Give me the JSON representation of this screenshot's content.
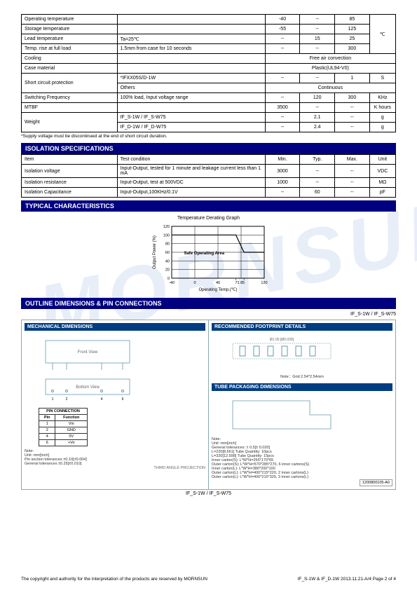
{
  "watermark": "MORNSUN",
  "table1": {
    "rows": [
      {
        "item": "Operating temperature",
        "cond": "",
        "min": "-40",
        "typ": "--",
        "max": "85",
        "unit_rowspan": true
      },
      {
        "item": "Storage temperature",
        "cond": "",
        "min": "-55",
        "typ": "--",
        "max": "125"
      },
      {
        "item": "Lead temperature",
        "cond": "Ta=25℃",
        "min": "--",
        "typ": "15",
        "max": "25"
      },
      {
        "item": "Temp. rise at full load",
        "cond": "1.5mm from case for 10 seconds",
        "min": "--",
        "typ": "--",
        "max": "300"
      }
    ],
    "tempunit": "℃",
    "cooling": {
      "item": "Cooling",
      "val": "Free air convection"
    },
    "case": {
      "item": "Case material",
      "val": "Plastic(UL94-V0)"
    },
    "short": {
      "item": "Short circuit protection",
      "r1cond": "*IFXX05S/D-1W",
      "r1min": "--",
      "r1typ": "--",
      "r1max": "1",
      "r1unit": "S",
      "r2cond": "Others",
      "r2val": "Continuous"
    },
    "swf": {
      "item": "Switching Frequency",
      "cond": "100% load, Input voltage range",
      "min": "--",
      "typ": "120",
      "max": "300",
      "unit": "KHz"
    },
    "mtbf": {
      "item": "MTBF",
      "cond": "",
      "min": "3500",
      "typ": "--",
      "max": "--",
      "unit": "K hours"
    },
    "weight": {
      "item": "Weight",
      "r1cond": "IF_S-1W / IF_S-W75",
      "r1min": "--",
      "r1typ": "2.1",
      "r1max": "--",
      "r1unit": "g",
      "r2cond": "IF_D-1W / IF_D-W75",
      "r2min": "--",
      "r2typ": "2.4",
      "r2max": "--",
      "r2unit": "g"
    }
  },
  "note1": "*Supply voltage must be discontinued at the end of short circuit duration.",
  "sect_iso": "ISOLATION SPECIFICATIONS",
  "iso": {
    "hdr": {
      "item": "Item",
      "cond": "Test condition",
      "min": "Min.",
      "typ": "Typ.",
      "max": "Max.",
      "unit": "Unit"
    },
    "r1": {
      "item": "Isolation voltage",
      "cond": "Input-Output, tested for 1 minute and leakage current less than 1 mA",
      "min": "3000",
      "typ": "--",
      "max": "--",
      "unit": "VDC"
    },
    "r2": {
      "item": "Isolation resistance",
      "cond": "Input-Output, test at 500VDC",
      "min": "1000",
      "typ": "--",
      "max": "--",
      "unit": "MΩ"
    },
    "r3": {
      "item": "Isolation Capacitance",
      "cond": "Input-Output,100KHz/0.1V",
      "min": "--",
      "typ": "60",
      "max": "--",
      "unit": "pF"
    }
  },
  "sect_typ": "TYPICAL CHARACTERISTICS",
  "chart": {
    "title": "Temperature Derating Graph",
    "ylabel": "Output Power (%)",
    "xlabel": "Operating Temp.(℃)",
    "safe": "Safe Operating Area",
    "xticks": [
      "-40",
      "0",
      "40",
      "71 85",
      "120"
    ],
    "yticks": [
      "0",
      "20",
      "40",
      "60",
      "80",
      "100",
      "120"
    ],
    "xlim": [
      -40,
      120
    ],
    "ylim": [
      0,
      120
    ],
    "line": [
      [
        -40,
        100
      ],
      [
        71,
        100
      ],
      [
        85,
        60
      ],
      [
        120,
        60
      ]
    ],
    "grid_color": "#000",
    "line_color": "#000",
    "bg": "#fff"
  },
  "sect_out": "OUTLINE DIMENSIONS & PIN CONNECTIONS",
  "model": "IF_S-1W / IF_S-W75",
  "dim": {
    "mech": "MECHANICAL DIMENSIONS",
    "front": "Front View",
    "bottom": "Bottom View",
    "pins_hdr": {
      "pin": "PIN CONNECTION",
      "p": "Pin",
      "f": "Function"
    },
    "pins": [
      [
        "1",
        "Vin"
      ],
      [
        "2",
        "GND"
      ],
      [
        "4",
        "0V"
      ],
      [
        "6",
        "+Vo"
      ]
    ],
    "pinnote1": "Note:",
    "pinnote2": "Unit :mm[inch]",
    "pinnote3": "Pin section tolerances ±0.10[±0.004]",
    "pinnote4": "General tolerances ±0.25[±0.010]",
    "thirdangle": "THIRD ANGLE PROJECTION",
    "foot": "RECOMMENDED FOOTPRINT DETAILS",
    "footnote": "Note：Grid 2.54*2.54mm",
    "tube": "TUBE PACKAGING DIMENSIONS",
    "tubenotes": [
      "Note:",
      "Unit :mm[inch]",
      "General tolerances: ± 0.5[± 0.020]",
      "L=220[8.661]     Tube Quantity: 10pcs",
      "L=320[12.598]   Tube Quantity: 15pcs",
      "Inner carton(S): L*W*H=255*170*65",
      "Outer carton(S): L*W*H=570*285*270, 6 inner cartons(S)",
      "Inner carton(L): L*W*H=380*200*100",
      "Outer carton(L): L*W*H=400*215*220, 2 inner cartons(L)",
      "Outer carton(L): L*W*H=400*215*325, 3 inner cartons(L)"
    ],
    "partno": "1200800105-A0"
  },
  "footer": {
    "left": "The copyright and authority for the interpretation of the products are reserved by MORNSUN",
    "right": "IF_S-1W & IF_D-1W      2013.11.21-A/4    Page  2  of  4"
  }
}
